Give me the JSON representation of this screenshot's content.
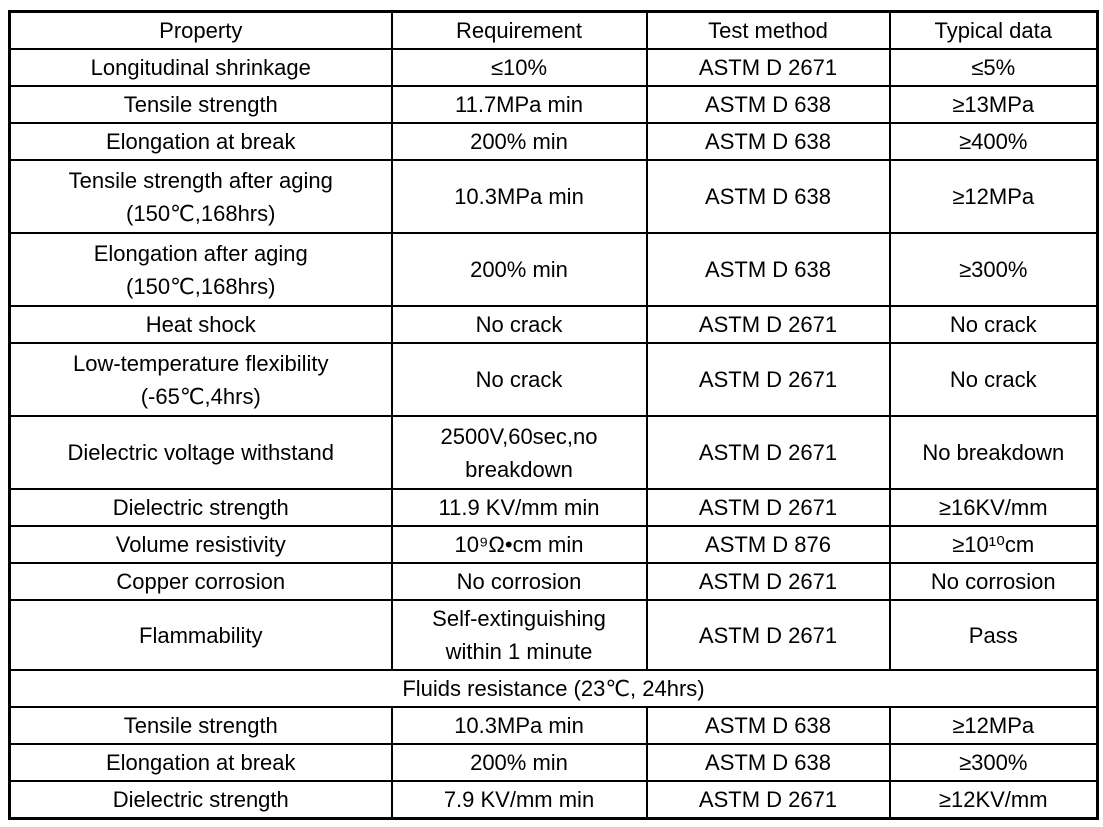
{
  "table": {
    "headers": [
      "Property",
      "Requirement",
      "Test method",
      "Typical data"
    ],
    "rows": [
      {
        "property": "Longitudinal shrinkage",
        "requirement": "≤10%",
        "test_method": "ASTM D 2671",
        "typical_data": "≤5%"
      },
      {
        "property": "Tensile strength",
        "requirement": "11.7MPa min",
        "test_method": "ASTM D 638",
        "typical_data": "≥13MPa"
      },
      {
        "property": "Elongation at break",
        "requirement": "200% min",
        "test_method": "ASTM D 638",
        "typical_data": "≥400%"
      },
      {
        "property": "Tensile strength after aging\n(150℃,168hrs)",
        "requirement": "10.3MPa min",
        "test_method": "ASTM D 638",
        "typical_data": "≥12MPa"
      },
      {
        "property": "Elongation after aging\n(150℃,168hrs)",
        "requirement": "200% min",
        "test_method": "ASTM D 638",
        "typical_data": "≥300%"
      },
      {
        "property": "Heat shock",
        "requirement": "No crack",
        "test_method": "ASTM D 2671",
        "typical_data": "No crack"
      },
      {
        "property": "Low-temperature flexibility\n(-65℃,4hrs)",
        "requirement": "No crack",
        "test_method": "ASTM D 2671",
        "typical_data": "No crack"
      },
      {
        "property": "Dielectric voltage withstand",
        "requirement": "2500V,60sec,no\nbreakdown",
        "test_method": "ASTM D 2671",
        "typical_data": "No breakdown"
      },
      {
        "property": "Dielectric strength",
        "requirement": "11.9 KV/mm min",
        "test_method": "ASTM D 2671",
        "typical_data": "≥16KV/mm"
      },
      {
        "property": "Volume resistivity",
        "requirement": "10⁹Ω•cm min",
        "test_method": "ASTM D 876",
        "typical_data": "≥10¹⁰cm"
      },
      {
        "property": "Copper corrosion",
        "requirement": "No corrosion",
        "test_method": "ASTM D 2671",
        "typical_data": "No corrosion"
      },
      {
        "property": "Flammability",
        "requirement": "Self-extinguishing\nwithin 1 minute",
        "test_method": "ASTM D 2671",
        "typical_data": "Pass"
      }
    ],
    "section": {
      "label": "Fluids resistance (23℃, 24hrs)"
    },
    "fluids_rows": [
      {
        "property": "Tensile strength",
        "requirement": "10.3MPa min",
        "test_method": "ASTM D 638",
        "typical_data": "≥12MPa"
      },
      {
        "property": "Elongation at break",
        "requirement": "200% min",
        "test_method": "ASTM D 638",
        "typical_data": "≥300%"
      },
      {
        "property": "Dielectric strength",
        "requirement": "7.9 KV/mm min",
        "test_method": "ASTM D 2671",
        "typical_data": "≥12KV/mm"
      }
    ]
  }
}
